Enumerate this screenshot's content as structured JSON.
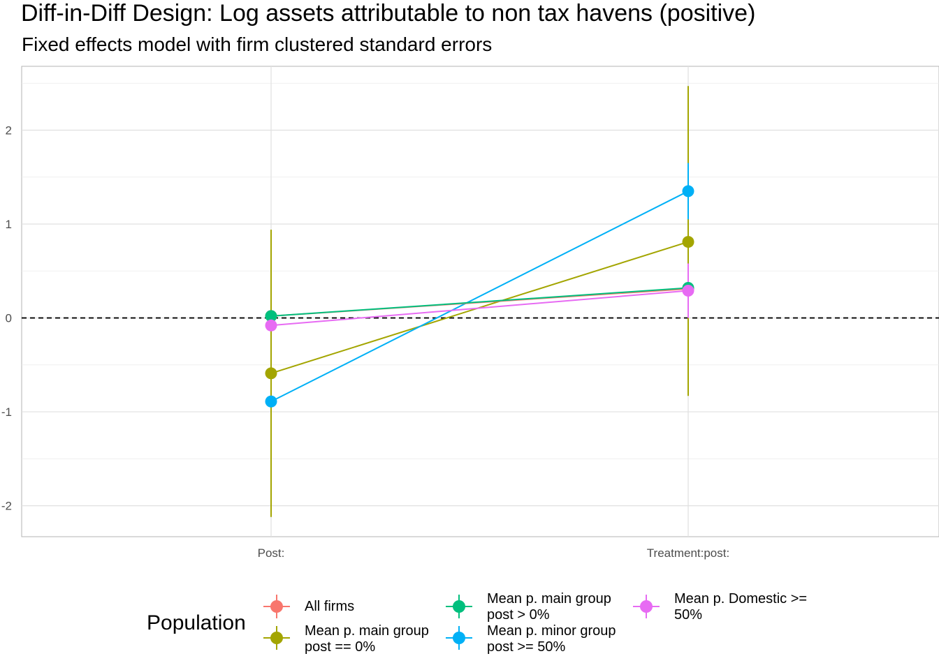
{
  "title": "Diff-in-Diff Design: Log assets attributable to non tax havens (positive)",
  "subtitle": "Fixed effects model with firm clustered standard errors",
  "legend": {
    "title": "Population",
    "items": [
      {
        "label": "All firms",
        "color": "#F8766D"
      },
      {
        "label": "Mean p. main group\npost == 0%",
        "color": "#A3A500"
      },
      {
        "label": "Mean p. main group\npost > 0%",
        "color": "#00BF7D"
      },
      {
        "label": "Mean p. minor group\npost >= 50%",
        "color": "#00B0F6"
      },
      {
        "label": "Mean p. Domestic >=\n50%",
        "color": "#E76BF3"
      }
    ]
  },
  "chart_data": {
    "type": "line",
    "categories": [
      "Post:",
      "Treatment:post:"
    ],
    "ylim": [
      -2.33,
      2.68
    ],
    "yticks": [
      -2,
      -1,
      0,
      1,
      2
    ],
    "grid": true,
    "reference_line": 0,
    "legend_position": "bottom",
    "series": [
      {
        "name": "All firms",
        "color": "#F8766D",
        "values": [
          0.02,
          0.31
        ],
        "lower": [
          0.02,
          0.31
        ],
        "upper": [
          0.02,
          0.31
        ]
      },
      {
        "name": "Mean p. main group\npost == 0%",
        "color": "#A3A500",
        "values": [
          -0.59,
          0.81
        ],
        "lower": [
          -2.12,
          -0.83
        ],
        "upper": [
          0.94,
          2.47
        ]
      },
      {
        "name": "Mean p. main group\npost > 0%",
        "color": "#00BF7D",
        "values": [
          0.02,
          0.32
        ],
        "lower": [
          -0.01,
          0.26
        ],
        "upper": [
          0.05,
          0.38
        ]
      },
      {
        "name": "Mean p. minor group\npost >= 50%",
        "color": "#00B0F6",
        "values": [
          -0.89,
          1.35
        ],
        "lower": [
          -0.93,
          1.05
        ],
        "upper": [
          -0.85,
          1.65
        ]
      },
      {
        "name": "Mean p. Domestic >=\n50%",
        "color": "#E76BF3",
        "values": [
          -0.08,
          0.29
        ],
        "lower": [
          -0.11,
          0.0
        ],
        "upper": [
          -0.05,
          0.58
        ]
      }
    ]
  }
}
